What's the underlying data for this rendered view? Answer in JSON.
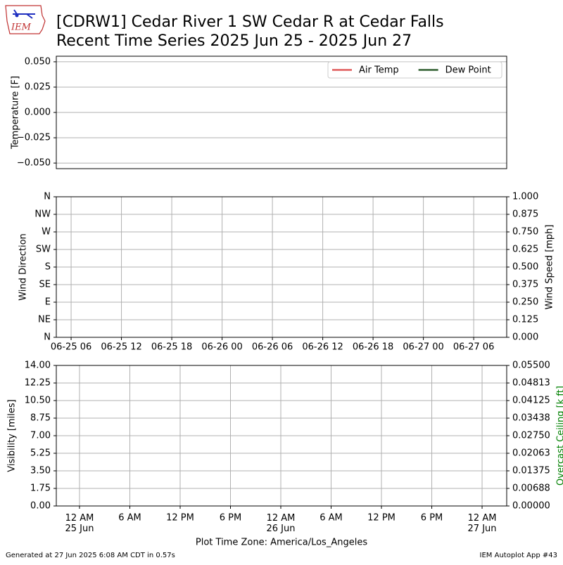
{
  "header": {
    "logo": "IEM",
    "title_line1": "[CDRW1] Cedar River 1 SW Cedar R at Cedar Falls",
    "title_line2": "Recent Time Series 2025 Jun 25 - 2025 Jun 27"
  },
  "chart_data": [
    {
      "type": "line",
      "ylabel": "Temperature [F]",
      "x": [],
      "series": [
        {
          "name": "Air Temp",
          "color": "#e05a5a",
          "values": []
        },
        {
          "name": "Dew Point",
          "color": "#2f5f2f",
          "values": []
        }
      ],
      "ylim": [
        -0.0555,
        0.0555
      ],
      "yticks": [
        {
          "value": -0.05,
          "label": "−0.050"
        },
        {
          "value": -0.025,
          "label": "−0.025"
        },
        {
          "value": 0,
          "label": "0.000"
        },
        {
          "value": 0.025,
          "label": "0.025"
        },
        {
          "value": 0.05,
          "label": "0.050"
        }
      ],
      "grid": "y",
      "legend": "upper right"
    },
    {
      "type": "line",
      "ylabel": "Wind Direction",
      "y2label": "Wind Speed [mph]",
      "x": [],
      "series": [],
      "xlim": [
        "06-25 04:14",
        "06-27 09:56"
      ],
      "xticks": [
        {
          "value": "06-25 06:00",
          "label": "06-25 06"
        },
        {
          "value": "06-25 12:00",
          "label": "06-25 12"
        },
        {
          "value": "06-25 18:00",
          "label": "06-25 18"
        },
        {
          "value": "06-26 00:00",
          "label": "06-26 00"
        },
        {
          "value": "06-26 06:00",
          "label": "06-26 06"
        },
        {
          "value": "06-26 12:00",
          "label": "06-26 12"
        },
        {
          "value": "06-26 18:00",
          "label": "06-26 18"
        },
        {
          "value": "06-27 00:00",
          "label": "06-27 00"
        },
        {
          "value": "06-27 06:00",
          "label": "06-27 06"
        }
      ],
      "ylim": [
        0,
        360
      ],
      "yticks": [
        {
          "value": 0,
          "label": "N"
        },
        {
          "value": 45,
          "label": "NE"
        },
        {
          "value": 90,
          "label": "E"
        },
        {
          "value": 135,
          "label": "SE"
        },
        {
          "value": 180,
          "label": "S"
        },
        {
          "value": 225,
          "label": "SW"
        },
        {
          "value": 270,
          "label": "W"
        },
        {
          "value": 315,
          "label": "NW"
        },
        {
          "value": 360,
          "label": "N"
        }
      ],
      "y2lim": [
        0,
        1
      ],
      "y2ticks": [
        {
          "value": 0,
          "label": "0.000"
        },
        {
          "value": 0.125,
          "label": "0.125"
        },
        {
          "value": 0.25,
          "label": "0.250"
        },
        {
          "value": 0.375,
          "label": "0.375"
        },
        {
          "value": 0.5,
          "label": "0.500"
        },
        {
          "value": 0.625,
          "label": "0.625"
        },
        {
          "value": 0.75,
          "label": "0.750"
        },
        {
          "value": 0.875,
          "label": "0.875"
        },
        {
          "value": 1,
          "label": "1.000"
        }
      ],
      "grid": "both"
    },
    {
      "type": "line",
      "ylabel": "Visibility [miles]",
      "y2label": "Overcast Ceiling [k ft]",
      "y2color": "#008000",
      "xlabel": "Plot Time Zone: America/Los_Angeles",
      "x": [],
      "series": [],
      "xlim": [
        "06-24 21:14",
        "06-27 02:56"
      ],
      "xticks": [
        {
          "value": "06-25 00:00",
          "label": "12 AM\n25 Jun"
        },
        {
          "value": "06-25 06:00",
          "label": "6 AM"
        },
        {
          "value": "06-25 12:00",
          "label": "12 PM"
        },
        {
          "value": "06-25 18:00",
          "label": "6 PM"
        },
        {
          "value": "06-26 00:00",
          "label": "12 AM\n26 Jun"
        },
        {
          "value": "06-26 06:00",
          "label": "6 AM"
        },
        {
          "value": "06-26 12:00",
          "label": "12 PM"
        },
        {
          "value": "06-26 18:00",
          "label": "6 PM"
        },
        {
          "value": "06-27 00:00",
          "label": "12 AM\n27 Jun"
        }
      ],
      "ylim": [
        0,
        14
      ],
      "yticks": [
        {
          "value": 0,
          "label": "0.00"
        },
        {
          "value": 1.75,
          "label": "1.75"
        },
        {
          "value": 3.5,
          "label": "3.50"
        },
        {
          "value": 5.25,
          "label": "5.25"
        },
        {
          "value": 7,
          "label": "7.00"
        },
        {
          "value": 8.75,
          "label": "8.75"
        },
        {
          "value": 10.5,
          "label": "10.50"
        },
        {
          "value": 12.25,
          "label": "12.25"
        },
        {
          "value": 14,
          "label": "14.00"
        }
      ],
      "y2lim": [
        0,
        0.055
      ],
      "y2ticks": [
        {
          "value": 0,
          "label": "0.00000"
        },
        {
          "value": 0.006875,
          "label": "0.00688"
        },
        {
          "value": 0.01375,
          "label": "0.01375"
        },
        {
          "value": 0.020625,
          "label": "0.02063"
        },
        {
          "value": 0.0275,
          "label": "0.02750"
        },
        {
          "value": 0.034375,
          "label": "0.03438"
        },
        {
          "value": 0.04125,
          "label": "0.04125"
        },
        {
          "value": 0.048125,
          "label": "0.04813"
        },
        {
          "value": 0.055,
          "label": "0.05500"
        }
      ],
      "grid": "both"
    }
  ],
  "footer": {
    "left": "Generated at 27 Jun 2025 6:08 AM CDT in 0.57s",
    "right": "IEM Autoplot App #43"
  }
}
